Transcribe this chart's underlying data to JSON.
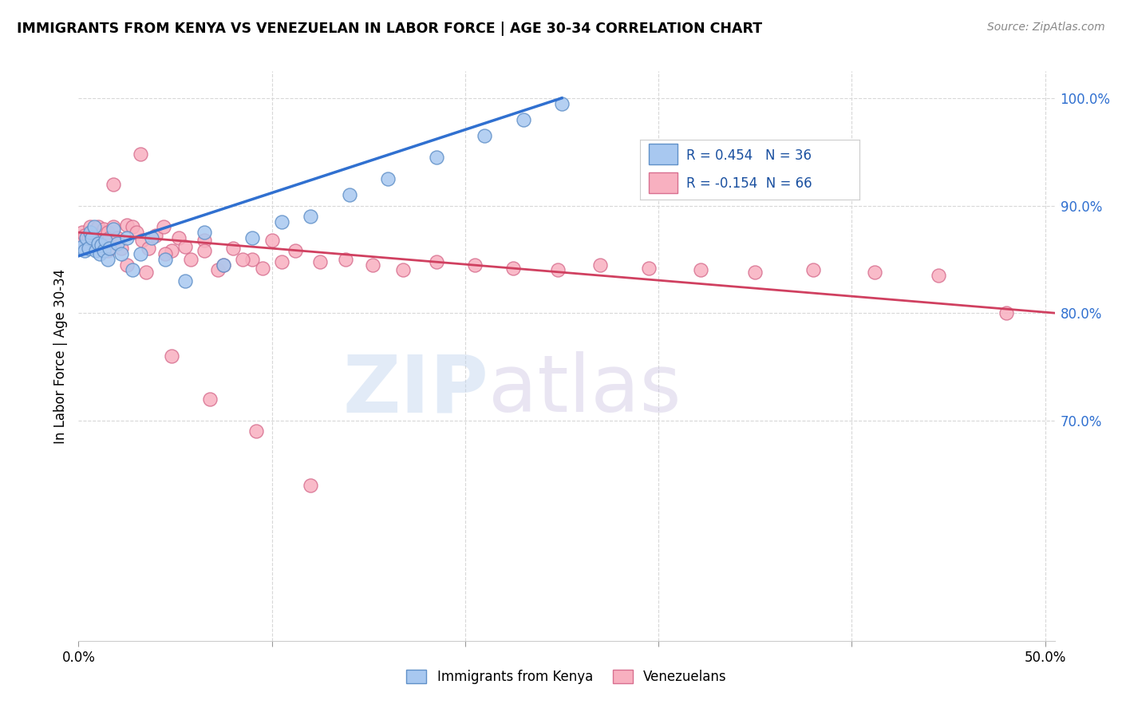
{
  "title": "IMMIGRANTS FROM KENYA VS VENEZUELAN IN LABOR FORCE | AGE 30-34 CORRELATION CHART",
  "source": "Source: ZipAtlas.com",
  "ylabel": "In Labor Force | Age 30-34",
  "xlim": [
    0.0,
    0.505
  ],
  "ylim": [
    0.495,
    1.025
  ],
  "xtick_vals": [
    0.0,
    0.1,
    0.2,
    0.3,
    0.4,
    0.5
  ],
  "xtick_labels": [
    "0.0%",
    "",
    "",
    "",
    "",
    "50.0%"
  ],
  "ytick_right_vals": [
    0.7,
    0.8,
    0.9,
    1.0
  ],
  "ytick_right_labels": [
    "70.0%",
    "80.0%",
    "90.0%",
    "100.0%"
  ],
  "kenya_fill": "#a8c8f0",
  "kenya_edge": "#6090c8",
  "venezuela_fill": "#f8b0c0",
  "venezuela_edge": "#d87090",
  "trend_kenya": "#3070d0",
  "trend_venezuela": "#d04060",
  "R_kenya": 0.454,
  "N_kenya": 36,
  "R_venezuela": -0.154,
  "N_venezuela": 66,
  "grid_color": "#d8d8d8",
  "watermark_zip": "ZIP",
  "watermark_atlas": "atlas",
  "kenya_label": "Immigrants from Kenya",
  "venezuela_label": "Venezuelans",
  "kenya_x": [
    0.001,
    0.002,
    0.003,
    0.004,
    0.005,
    0.006,
    0.007,
    0.008,
    0.009,
    0.01,
    0.011,
    0.012,
    0.013,
    0.014,
    0.015,
    0.016,
    0.018,
    0.02,
    0.022,
    0.025,
    0.028,
    0.032,
    0.038,
    0.045,
    0.055,
    0.065,
    0.075,
    0.09,
    0.105,
    0.12,
    0.14,
    0.16,
    0.185,
    0.21,
    0.23,
    0.25
  ],
  "kenya_y": [
    0.86,
    0.862,
    0.858,
    0.87,
    0.86,
    0.875,
    0.87,
    0.88,
    0.858,
    0.865,
    0.855,
    0.863,
    0.858,
    0.868,
    0.85,
    0.86,
    0.878,
    0.865,
    0.855,
    0.87,
    0.84,
    0.855,
    0.87,
    0.85,
    0.83,
    0.875,
    0.845,
    0.87,
    0.885,
    0.89,
    0.91,
    0.925,
    0.945,
    0.965,
    0.98,
    0.995
  ],
  "venezuela_x": [
    0.001,
    0.002,
    0.003,
    0.004,
    0.005,
    0.006,
    0.007,
    0.008,
    0.009,
    0.01,
    0.011,
    0.012,
    0.013,
    0.015,
    0.016,
    0.018,
    0.02,
    0.022,
    0.025,
    0.028,
    0.03,
    0.033,
    0.036,
    0.04,
    0.044,
    0.048,
    0.052,
    0.058,
    0.065,
    0.072,
    0.08,
    0.09,
    0.1,
    0.112,
    0.125,
    0.138,
    0.152,
    0.168,
    0.185,
    0.205,
    0.225,
    0.248,
    0.27,
    0.295,
    0.322,
    0.35,
    0.38,
    0.412,
    0.445,
    0.48,
    0.015,
    0.025,
    0.035,
    0.045,
    0.055,
    0.065,
    0.075,
    0.085,
    0.095,
    0.105,
    0.018,
    0.032,
    0.048,
    0.068,
    0.092,
    0.12
  ],
  "venezuela_y": [
    0.868,
    0.875,
    0.872,
    0.865,
    0.87,
    0.88,
    0.875,
    0.87,
    0.865,
    0.88,
    0.872,
    0.86,
    0.878,
    0.875,
    0.87,
    0.88,
    0.87,
    0.86,
    0.882,
    0.88,
    0.875,
    0.868,
    0.86,
    0.872,
    0.88,
    0.858,
    0.87,
    0.85,
    0.868,
    0.84,
    0.86,
    0.85,
    0.868,
    0.858,
    0.848,
    0.85,
    0.845,
    0.84,
    0.848,
    0.845,
    0.842,
    0.84,
    0.845,
    0.842,
    0.84,
    0.838,
    0.84,
    0.838,
    0.835,
    0.8,
    0.858,
    0.845,
    0.838,
    0.855,
    0.862,
    0.858,
    0.845,
    0.85,
    0.842,
    0.848,
    0.92,
    0.948,
    0.76,
    0.72,
    0.69,
    0.64
  ]
}
